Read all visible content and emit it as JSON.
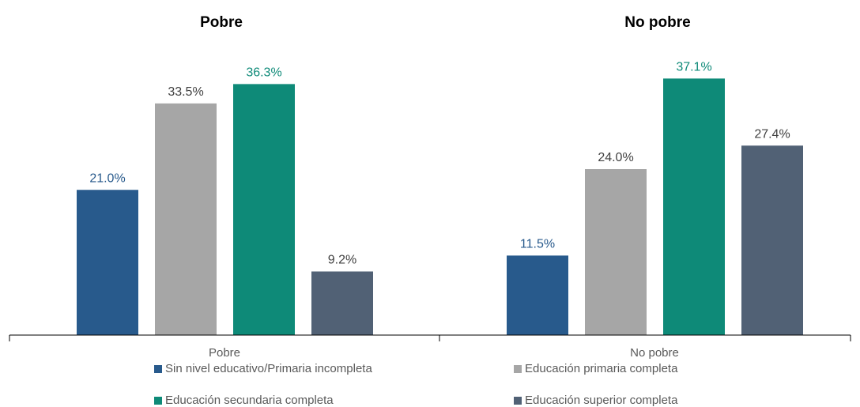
{
  "chart_data": {
    "type": "bar",
    "categories": [
      "Pobre",
      "No pobre"
    ],
    "group_titles": [
      "Pobre",
      "No pobre"
    ],
    "series": [
      {
        "name": "Sin nivel educativo/Primaria incompleta",
        "values": [
          21.0,
          11.5
        ],
        "labels": [
          "21.0%",
          "11.5%"
        ],
        "color": "#285a8c",
        "label_color": "#285a8c"
      },
      {
        "name": "Educación primaria completa",
        "values": [
          33.5,
          24.0
        ],
        "labels": [
          "33.5%",
          "24.0%"
        ],
        "color": "#a6a6a6",
        "label_color": "#404040"
      },
      {
        "name": "Educación secundaria completa",
        "values": [
          36.3,
          37.1
        ],
        "labels": [
          "36.3%",
          "37.1%"
        ],
        "color": "#0e8a78",
        "label_color": "#0e8a78"
      },
      {
        "name": "Educación superior completa",
        "values": [
          9.2,
          27.4
        ],
        "labels": [
          "9.2%",
          "27.4%"
        ],
        "color": "#516175",
        "label_color": "#404040"
      }
    ],
    "ylim": [
      0,
      40
    ],
    "grid": false,
    "legend_position": "bottom"
  }
}
